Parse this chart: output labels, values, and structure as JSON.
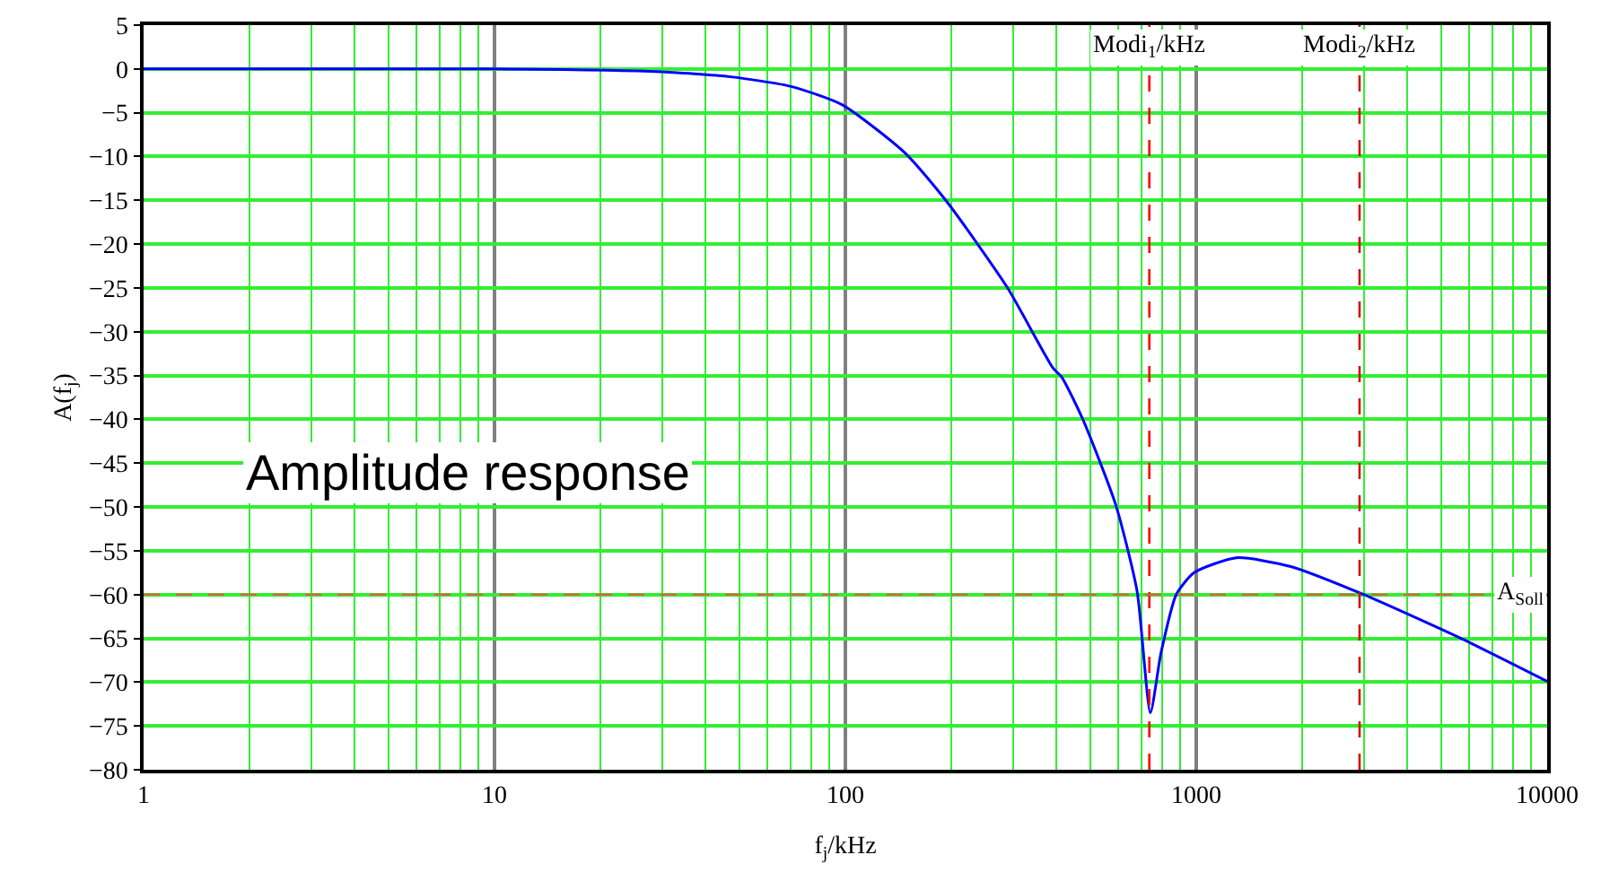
{
  "chart_data": {
    "type": "line",
    "xlabel": "f$_{j}$/kHz",
    "ylabel": "A(f$_{j}$)",
    "annotations": [
      "Amplitude response"
    ],
    "x": [
      1,
      10,
      28.6,
      47.1,
      70,
      98,
      148,
      195,
      290,
      390,
      414,
      475,
      590,
      678,
      740,
      794,
      877,
      986,
      1301,
      1858,
      3000,
      5614,
      10000
    ],
    "series": [
      {
        "color": "#0000ff",
        "values": [
          0,
          0,
          -0.3,
          -0.9,
          -2.0,
          -4.1,
          -9.6,
          -15.2,
          -25,
          -34.1,
          -35.2,
          -40,
          -49.8,
          -59.6,
          -73.5,
          -66.6,
          -60,
          -57.5,
          -55.8,
          -56.8,
          -60,
          -64.9,
          -69.9
        ]
      }
    ],
    "log": "x",
    "xlim": [
      1,
      10000
    ],
    "xticks": [
      1,
      {
        "value": 2,
        "label": null
      },
      {
        "value": 3,
        "label": null
      },
      {
        "value": 4,
        "label": null
      },
      {
        "value": 5,
        "label": null
      },
      {
        "value": 6,
        "label": null
      },
      {
        "value": 7,
        "label": null
      },
      {
        "value": 8,
        "label": null
      },
      {
        "value": 9,
        "label": null
      },
      10,
      {
        "value": 20,
        "label": null
      },
      {
        "value": 30,
        "label": null
      },
      {
        "value": 40,
        "label": null
      },
      {
        "value": 50,
        "label": null
      },
      {
        "value": 60,
        "label": null
      },
      {
        "value": 70,
        "label": null
      },
      {
        "value": 80,
        "label": null
      },
      {
        "value": 90,
        "label": null
      },
      100,
      {
        "value": 200,
        "label": null
      },
      {
        "value": 300,
        "label": null
      },
      {
        "value": 400,
        "label": null
      },
      {
        "value": 500,
        "label": null
      },
      {
        "value": 600,
        "label": null
      },
      {
        "value": 700,
        "label": null
      },
      {
        "value": 800,
        "label": null
      },
      {
        "value": 900,
        "label": null
      },
      1000,
      {
        "value": 2000,
        "label": null
      },
      {
        "value": 3000,
        "label": null
      },
      {
        "value": 4000,
        "label": null
      },
      {
        "value": 5000,
        "label": null
      },
      {
        "value": 6000,
        "label": null
      },
      {
        "value": 7000,
        "label": null
      },
      {
        "value": 8000,
        "label": null
      },
      {
        "value": 9000,
        "label": null
      },
      10000
    ],
    "ylim": [
      -80,
      5
    ],
    "yticks": [
      5,
      0,
      {
        "value": -5,
        "label": "−5"
      },
      {
        "value": -10,
        "label": "−10"
      },
      {
        "value": -15,
        "label": "−15"
      },
      {
        "value": -20,
        "label": "−20"
      },
      {
        "value": -25,
        "label": "−25"
      },
      {
        "value": -30,
        "label": "−30"
      },
      {
        "value": -35,
        "label": "−35"
      },
      {
        "value": -40,
        "label": "−40"
      },
      {
        "value": -45,
        "label": "−45"
      },
      {
        "value": -50,
        "label": "−50"
      },
      {
        "value": -55,
        "label": "−55"
      },
      {
        "value": -60,
        "label": "−60"
      },
      {
        "value": -65,
        "label": "−65"
      },
      {
        "value": -70,
        "label": "−70"
      },
      {
        "value": -75,
        "label": "−75"
      },
      {
        "value": -80,
        "label": "−80"
      }
    ],
    "grid": true,
    "marker": "none",
    "line_style": "solid",
    "ref_lines": [
      {
        "axis": "x",
        "value": 735,
        "label": "Modi$_{1}$/kHz",
        "color": "#ff0000",
        "line_style": "dashed"
      },
      {
        "axis": "x",
        "value": 2920,
        "label": "Modi$_{2}$/kHz",
        "color": "#d01010",
        "line_style": "dashed"
      },
      {
        "axis": "y",
        "value": -60,
        "label": "A$_{Soll}$",
        "color": "#c8703a",
        "line_style": "dashed"
      }
    ]
  }
}
